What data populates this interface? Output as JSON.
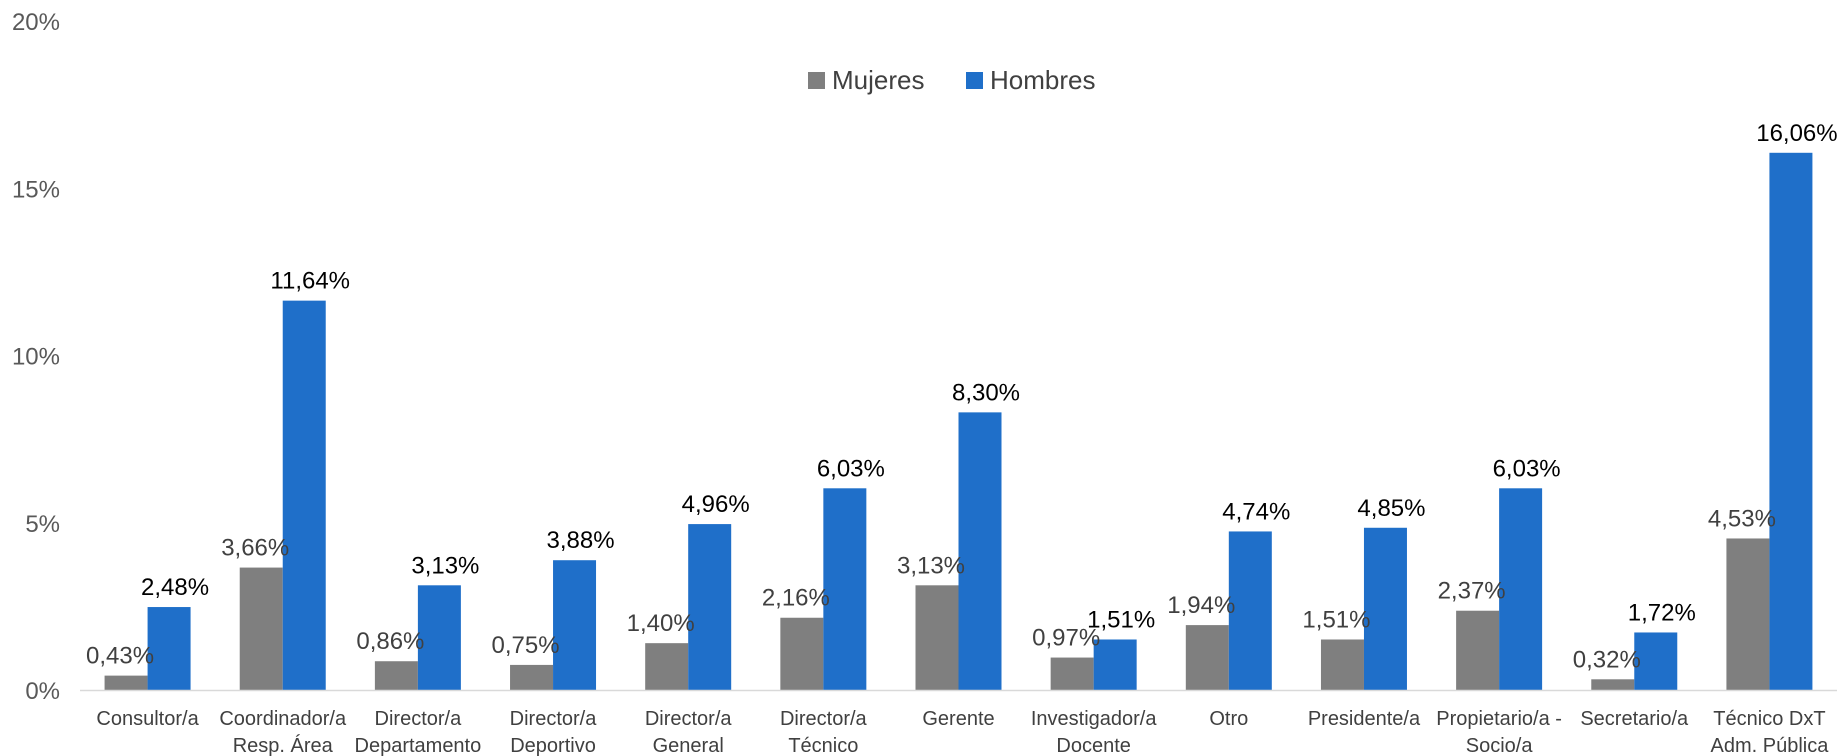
{
  "chart_data": {
    "type": "bar",
    "categories": [
      [
        "Consultor/a"
      ],
      [
        "Coordinador/a",
        "Resp. Área"
      ],
      [
        "Director/a",
        "Departamento"
      ],
      [
        "Director/a",
        "Deportivo"
      ],
      [
        "Director/a",
        "General"
      ],
      [
        "Director/a",
        "Técnico"
      ],
      [
        "Gerente"
      ],
      [
        "Investigador/a",
        "Docente"
      ],
      [
        "Otro"
      ],
      [
        "Presidente/a"
      ],
      [
        "Propietario/a -",
        "Socio/a"
      ],
      [
        "Secretario/a"
      ],
      [
        "Técnico DxT",
        "Adm. Pública"
      ]
    ],
    "series": [
      {
        "name": "Mujeres",
        "color": "#7f7f7f",
        "values": [
          0.43,
          3.66,
          0.86,
          0.75,
          1.4,
          2.16,
          3.13,
          0.97,
          1.94,
          1.51,
          2.37,
          0.32,
          4.53
        ],
        "labels": [
          "0,43%",
          "3,66%",
          "0,86%",
          "0,75%",
          "1,40%",
          "2,16%",
          "3,13%",
          "0,97%",
          "1,94%",
          "1,51%",
          "2,37%",
          "0,32%",
          "4,53%"
        ]
      },
      {
        "name": "Hombres",
        "color": "#1f6fc9",
        "values": [
          2.48,
          11.64,
          3.13,
          3.88,
          4.96,
          6.03,
          8.3,
          1.51,
          4.74,
          4.85,
          6.03,
          1.72,
          16.06
        ],
        "labels": [
          "2,48%",
          "11,64%",
          "3,13%",
          "3,88%",
          "4,96%",
          "6,03%",
          "8,30%",
          "1,51%",
          "4,74%",
          "4,85%",
          "6,03%",
          "1,72%",
          "16,06%"
        ]
      }
    ],
    "y_ticks": [
      0,
      5,
      10,
      15,
      20
    ],
    "y_tick_labels": [
      "0%",
      "5%",
      "10%",
      "15%",
      "20%"
    ],
    "ylim": [
      0,
      20
    ],
    "legend_position": "top-center",
    "grid": false
  }
}
